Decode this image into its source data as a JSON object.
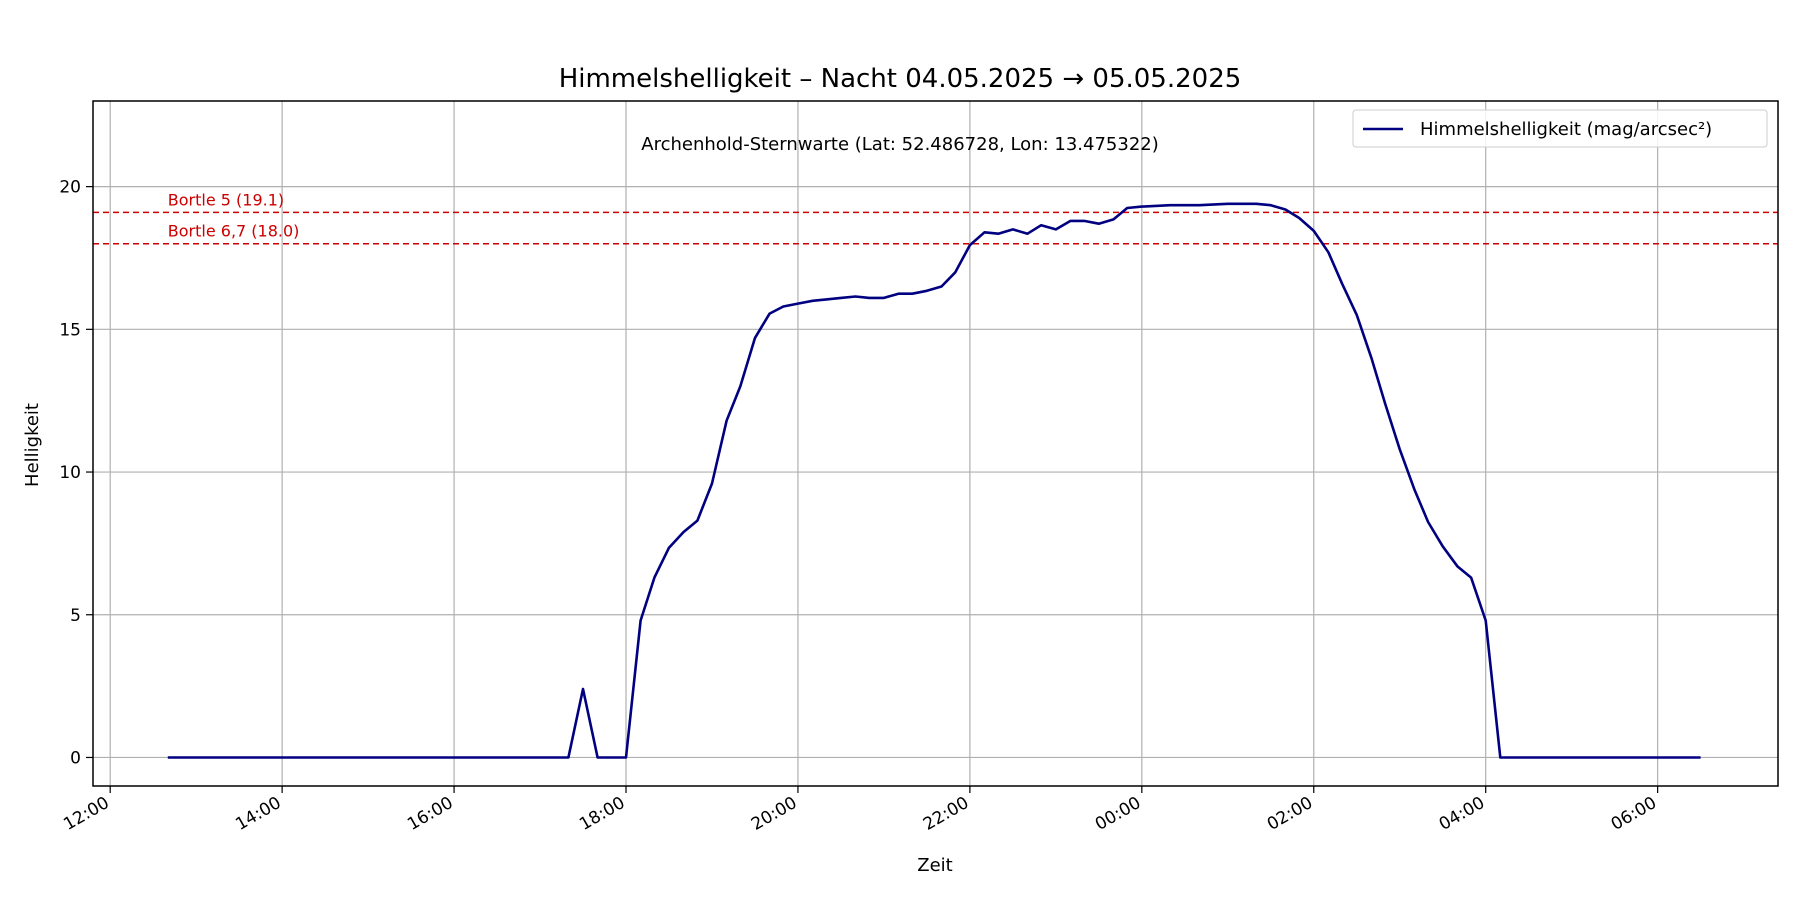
{
  "chart_data": {
    "type": "line",
    "title": "Himmelshelligkeit – Nacht 04.05.2025 → 05.05.2025",
    "subtitle": "Archenhold-Sternwarte (Lat: 52.486728, Lon: 13.475322)",
    "xlabel": "Zeit",
    "ylabel": "Helligkeit",
    "xlim_hours": [
      11.8,
      31.4
    ],
    "ylim": [
      -1,
      23
    ],
    "grid": true,
    "legend_placement": "top-right",
    "x_tick_hours": [
      12,
      14,
      16,
      18,
      20,
      22,
      24,
      26,
      28,
      30
    ],
    "x_tick_labels": [
      "12:00",
      "14:00",
      "16:00",
      "18:00",
      "20:00",
      "22:00",
      "00:00",
      "02:00",
      "04:00",
      "06:00"
    ],
    "y_ticks": [
      0,
      5,
      10,
      15,
      20
    ],
    "y_tick_labels": [
      "0",
      "5",
      "10",
      "15",
      "20"
    ],
    "reference_lines": [
      {
        "label": "Bortle 5 (19.1)",
        "value": 19.1,
        "color": "#cc0000"
      },
      {
        "label": "Bortle 6,7 (18.0)",
        "value": 18.0,
        "color": "#cc0000"
      }
    ],
    "series": [
      {
        "name": "Himmelshelligkeit (mag/arcsec²)",
        "color": "#000080",
        "x_hours": [
          12.67,
          17.33,
          17.5,
          17.67,
          18.0,
          18.17,
          18.33,
          18.5,
          18.67,
          18.83,
          19.0,
          19.17,
          19.33,
          19.5,
          19.67,
          19.83,
          20.0,
          20.17,
          20.33,
          20.5,
          20.67,
          20.83,
          21.0,
          21.17,
          21.33,
          21.5,
          21.67,
          21.83,
          22.0,
          22.17,
          22.33,
          22.5,
          22.67,
          22.83,
          23.0,
          23.17,
          23.33,
          23.5,
          23.67,
          23.83,
          24.0,
          24.33,
          24.67,
          25.0,
          25.33,
          25.5,
          25.67,
          25.83,
          26.0,
          26.17,
          26.33,
          26.5,
          26.67,
          26.83,
          27.0,
          27.17,
          27.33,
          27.5,
          27.67,
          27.83,
          28.0,
          28.17,
          28.33,
          30.5
        ],
        "values": [
          0,
          0,
          2.4,
          0,
          0,
          4.8,
          6.3,
          7.35,
          7.9,
          8.3,
          9.6,
          11.8,
          13.0,
          14.7,
          15.55,
          15.8,
          15.9,
          16.0,
          16.05,
          16.1,
          16.15,
          16.1,
          16.1,
          16.25,
          16.25,
          16.35,
          16.5,
          17.0,
          17.95,
          18.4,
          18.35,
          18.5,
          18.35,
          18.65,
          18.5,
          18.8,
          18.8,
          18.7,
          18.85,
          19.25,
          19.3,
          19.35,
          19.35,
          19.4,
          19.4,
          19.35,
          19.2,
          18.9,
          18.45,
          17.7,
          16.6,
          15.5,
          14.0,
          12.4,
          10.8,
          9.4,
          8.25,
          7.4,
          6.7,
          6.3,
          4.8,
          0,
          0,
          0
        ]
      }
    ]
  }
}
